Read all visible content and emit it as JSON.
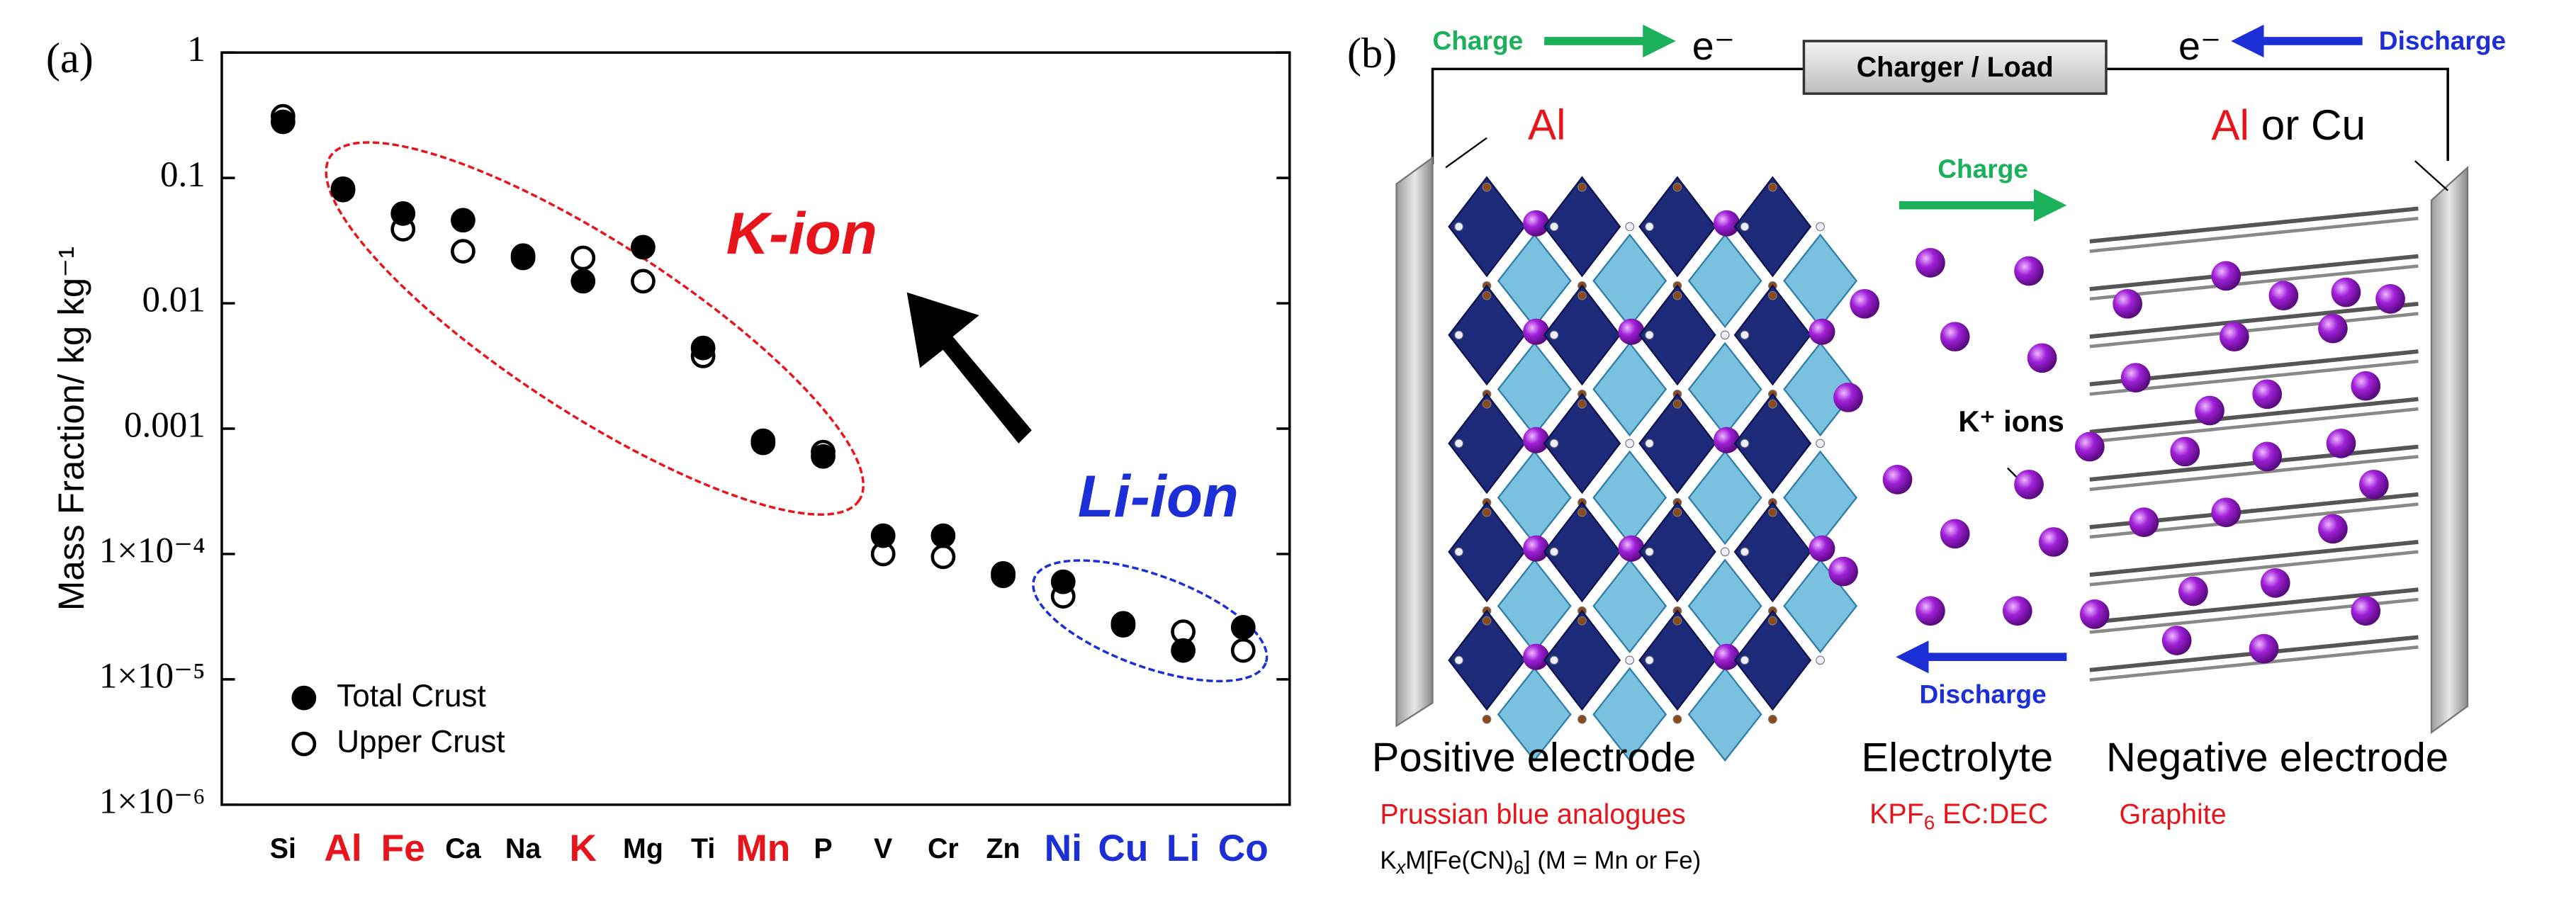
{
  "chart_data": {
    "type": "scatter",
    "panel_label": "(a)",
    "ylabel": "Mass Fraction/ kg kg⁻¹",
    "categories": [
      "Si",
      "Al",
      "Fe",
      "Ca",
      "Na",
      "K",
      "Mg",
      "Ti",
      "Mn",
      "P",
      "V",
      "Cr",
      "Zn",
      "Ni",
      "Cu",
      "Li",
      "Co"
    ],
    "category_colors": [
      "#000000",
      "#e8141b",
      "#e8141b",
      "#000000",
      "#000000",
      "#e8141b",
      "#000000",
      "#000000",
      "#e8141b",
      "#000000",
      "#000000",
      "#000000",
      "#000000",
      "#1c2fd6",
      "#1c2fd6",
      "#1c2fd6",
      "#1c2fd6"
    ],
    "series": [
      {
        "name": "Total Crust",
        "color": "#000000",
        "marker": "filled",
        "values": [
          0.28,
          0.082,
          0.052,
          0.046,
          0.023,
          0.015,
          0.028,
          0.0044,
          0.00077,
          0.0006,
          0.00014,
          0.00014,
          7e-05,
          6e-05,
          2.7e-05,
          1.7e-05,
          2.6e-05
        ]
      },
      {
        "name": "Upper Crust",
        "color": "#000000",
        "marker": "open",
        "values": [
          0.31,
          0.08,
          0.039,
          0.026,
          0.024,
          0.023,
          0.015,
          0.0038,
          0.0008,
          0.00065,
          0.0001,
          9.5e-05,
          6.7e-05,
          4.6e-05,
          2.8e-05,
          2.4e-05,
          1.7e-05
        ]
      }
    ],
    "ylim": [
      1e-06,
      1
    ],
    "log_scale": true,
    "yticks": [
      {
        "value": 1e-06,
        "label": "1×10⁻⁶"
      },
      {
        "value": 1e-05,
        "label": "1×10⁻⁵"
      },
      {
        "value": 0.0001,
        "label": "1×10⁻⁴"
      },
      0.001,
      0.01,
      0.1,
      1
    ],
    "legend": "lower left",
    "annotations": [
      {
        "text": "K-ion",
        "color": "#e8141b"
      },
      {
        "text": "Li-ion",
        "color": "#1c2fd6"
      }
    ]
  },
  "diagram": {
    "panel_label": "(b)",
    "charge_top": "Charge",
    "electron_left": "e⁻",
    "load": "Charger / Load",
    "electron_right": "e⁻",
    "discharge_top": "Discharge",
    "collector_positive": "Al",
    "collector_negative": [
      "Al",
      " or Cu"
    ],
    "charge_middle": "Charge",
    "ions": "K⁺ ions",
    "discharge_middle": "Discharge",
    "positive": {
      "title": "Positive electrode",
      "material": "Prussian blue analogues",
      "formula": [
        "K",
        "x",
        "M[Fe(CN)",
        "6",
        "] (M = Mn or Fe)"
      ]
    },
    "electrolyte": {
      "title": "Electrolyte",
      "material": [
        "KPF",
        "6",
        " EC:DEC"
      ]
    },
    "negative": {
      "title": "Negative electrode",
      "material": "Graphite"
    }
  }
}
